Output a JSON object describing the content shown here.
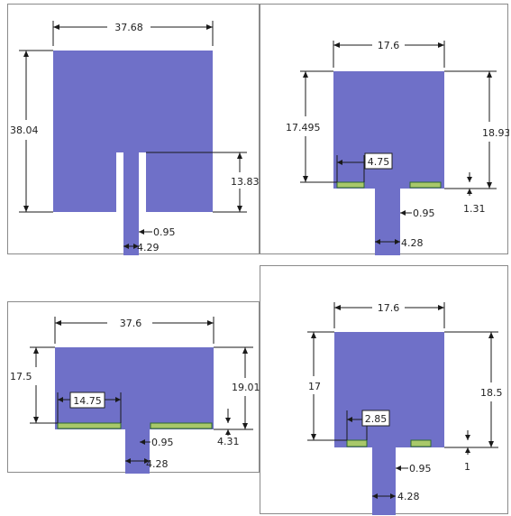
{
  "colors": {
    "patch": "#6f70c8",
    "slot_fill": "#a8c86a",
    "slot_stroke": "#2f6a2f",
    "dimension": "#1a1a1a",
    "panel_border": "#8a8a8a"
  },
  "panels": [
    {
      "name": "antenna-1",
      "labels": {
        "width": "37.68",
        "height": "38.04",
        "slot_depth": "13.83",
        "gap": "0.95",
        "feed": "4.29"
      }
    },
    {
      "name": "antenna-2",
      "labels": {
        "width": "17.6",
        "left_height": "17.495",
        "right_height": "18.93",
        "stub_length": "4.75",
        "stub_offset": "1.31",
        "gap": "0.95",
        "feed": "4.28"
      }
    },
    {
      "name": "antenna-3",
      "labels": {
        "width": "37.6",
        "left_height": "17.5",
        "right_height": "19.01",
        "stub_length": "14.75",
        "stub_offset": "4.31",
        "gap": "0.95",
        "feed": "4.28"
      }
    },
    {
      "name": "antenna-4",
      "labels": {
        "width": "17.6",
        "left_height": "17",
        "right_height": "18.5",
        "stub_length": "2.85",
        "stub_offset": "1",
        "gap": "0.95",
        "feed": "4.28"
      }
    }
  ]
}
